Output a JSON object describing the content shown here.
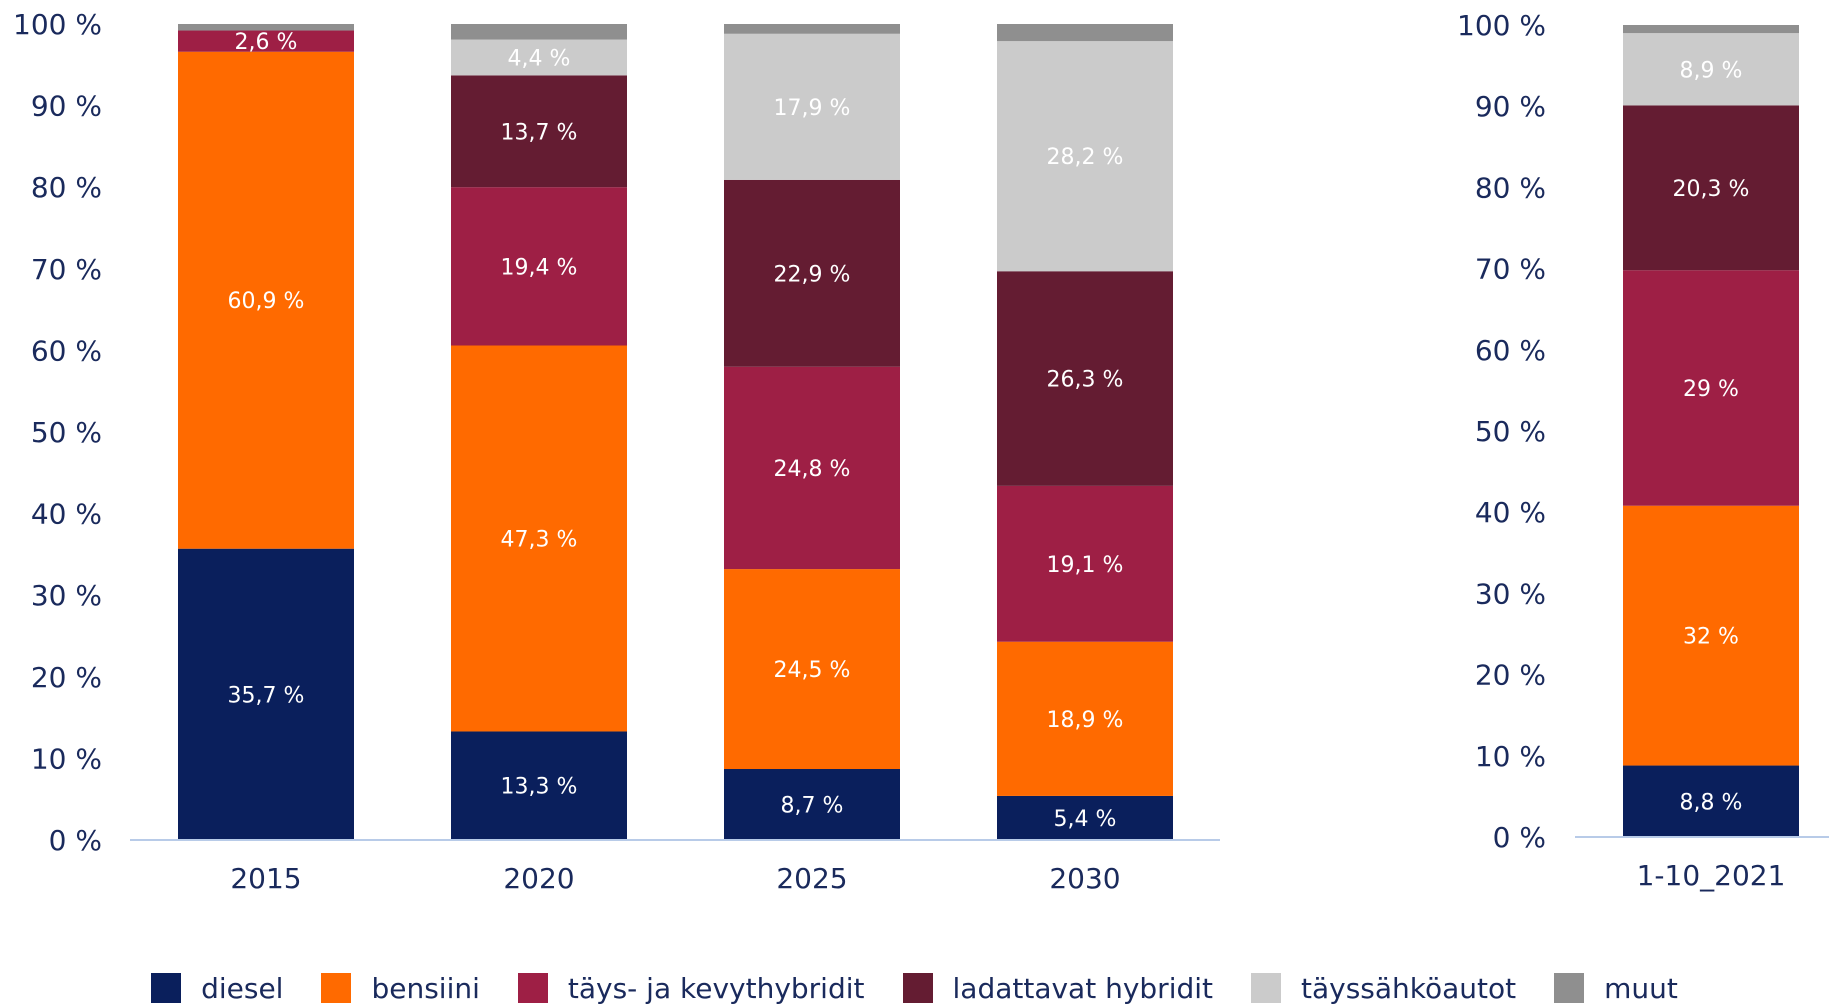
{
  "colors": {
    "diesel": "#0a1f5c",
    "bensiini": "#ff6a00",
    "taysjakevyt": "#9e1f45",
    "ladattavat": "#641c32",
    "tayssahko": "#cbcbcb",
    "muut": "#8f8f8f",
    "axis": "#b8cbe8",
    "text": "#1a2a5c"
  },
  "chart_data": [
    {
      "type": "bar",
      "stacked": true,
      "categories": [
        "2015",
        "2020",
        "2025",
        "2030"
      ],
      "ylim": [
        0,
        100
      ],
      "ytick_labels": [
        "0 %",
        "10 %",
        "20 %",
        "30 %",
        "40 %",
        "50 %",
        "60 %",
        "70 %",
        "80 %",
        "90 %",
        "100 %"
      ],
      "series": [
        {
          "name": "diesel",
          "color_key": "diesel",
          "values": [
            35.7,
            13.3,
            8.7,
            5.4
          ],
          "labels": [
            "35,7 %",
            "13,3 %",
            "8,7 %",
            "5,4 %"
          ]
        },
        {
          "name": "bensiini",
          "color_key": "bensiini",
          "values": [
            60.9,
            47.3,
            24.5,
            18.9
          ],
          "labels": [
            "60,9 %",
            "47,3 %",
            "24,5 %",
            "18,9 %"
          ]
        },
        {
          "name": "täys- ja kevythybridit",
          "color_key": "taysjakevyt",
          "values": [
            2.6,
            19.4,
            24.8,
            19.1
          ],
          "labels": [
            "2,6 %",
            "19,4 %",
            "24,8 %",
            "19,1 %"
          ]
        },
        {
          "name": "ladattavat hybridit",
          "color_key": "ladattavat",
          "values": [
            0.0,
            13.7,
            22.9,
            26.3
          ],
          "labels": [
            "",
            "13,7 %",
            "22,9 %",
            "26,3 %"
          ]
        },
        {
          "name": "täyssähköautot",
          "color_key": "tayssahko",
          "values": [
            0.0,
            4.4,
            17.9,
            28.2
          ],
          "labels": [
            "",
            "4,4 %",
            "17,9 %",
            "28,2 %"
          ]
        },
        {
          "name": "muut",
          "color_key": "muut",
          "values": [
            0.8,
            1.9,
            1.2,
            2.1
          ],
          "labels": [
            "",
            "",
            "",
            ""
          ]
        }
      ]
    },
    {
      "type": "bar",
      "stacked": true,
      "categories": [
        "1-10_2021"
      ],
      "ylim": [
        0,
        100
      ],
      "ytick_labels": [
        "0 %",
        "10 %",
        "20 %",
        "30 %",
        "40 %",
        "50 %",
        "60 %",
        "70 %",
        "80 %",
        "90 %",
        "100 %"
      ],
      "series": [
        {
          "name": "diesel",
          "color_key": "diesel",
          "values": [
            8.8
          ],
          "labels": [
            "8,8 %"
          ]
        },
        {
          "name": "bensiini",
          "color_key": "bensiini",
          "values": [
            32.0
          ],
          "labels": [
            "32 %"
          ]
        },
        {
          "name": "täys- ja kevythybridit",
          "color_key": "taysjakevyt",
          "values": [
            29.0
          ],
          "labels": [
            "29 %"
          ]
        },
        {
          "name": "ladattavat hybridit",
          "color_key": "ladattavat",
          "values": [
            20.3
          ],
          "labels": [
            "20,3 %"
          ]
        },
        {
          "name": "täyssähköautot",
          "color_key": "tayssahko",
          "values": [
            8.9
          ],
          "labels": [
            "8,9 %"
          ]
        },
        {
          "name": "muut",
          "color_key": "muut",
          "values": [
            1.0
          ],
          "labels": [
            ""
          ]
        }
      ]
    }
  ],
  "legend": {
    "items": [
      {
        "label": "diesel",
        "color_key": "diesel"
      },
      {
        "label": "bensiini",
        "color_key": "bensiini"
      },
      {
        "label": "täys- ja kevythybridit",
        "color_key": "taysjakevyt"
      },
      {
        "label": "ladattavat hybridit",
        "color_key": "ladattavat"
      },
      {
        "label": "täyssähköautot",
        "color_key": "tayssahko"
      },
      {
        "label": "muut",
        "color_key": "muut"
      }
    ]
  }
}
